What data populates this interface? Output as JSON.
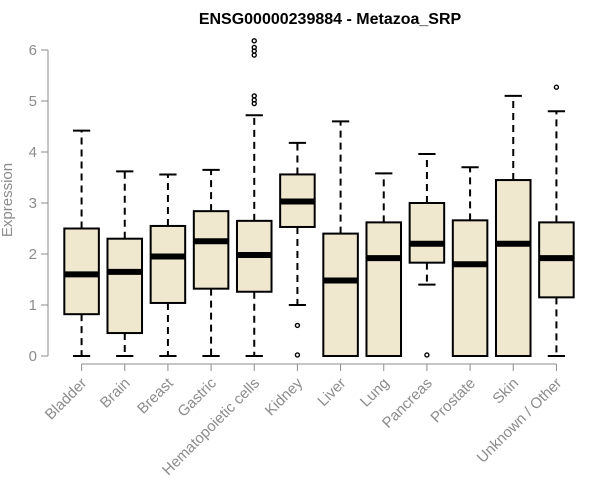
{
  "chart_data": {
    "type": "box",
    "title": "ENSG00000239884 - Metazoa_SRP",
    "xlabel": "",
    "ylabel": "Expression",
    "ylim": [
      0,
      6.2
    ],
    "yticks": [
      0,
      1,
      2,
      3,
      4,
      5,
      6
    ],
    "box_color": "#efe8cf",
    "categories": [
      "Bladder",
      "Brain",
      "Breast",
      "Gastric",
      "Hematopoietic cells",
      "Kidney",
      "Liver",
      "Lung",
      "Pancreas",
      "Prostate",
      "Skin",
      "Unknown / Other"
    ],
    "boxes": [
      {
        "whisker_low": 0,
        "q1": 0.82,
        "median": 1.6,
        "q3": 2.5,
        "whisker_high": 4.42,
        "outliers": []
      },
      {
        "whisker_low": 0,
        "q1": 0.45,
        "median": 1.65,
        "q3": 2.3,
        "whisker_high": 3.62,
        "outliers": []
      },
      {
        "whisker_low": 0,
        "q1": 1.04,
        "median": 1.95,
        "q3": 2.55,
        "whisker_high": 3.56,
        "outliers": []
      },
      {
        "whisker_low": 0,
        "q1": 1.32,
        "median": 2.25,
        "q3": 2.84,
        "whisker_high": 3.65,
        "outliers": []
      },
      {
        "whisker_low": 0,
        "q1": 1.26,
        "median": 1.98,
        "q3": 2.65,
        "whisker_high": 4.72,
        "outliers": [
          4.95,
          5.02,
          5.1,
          5.9,
          5.98,
          6.05,
          6.18
        ]
      },
      {
        "whisker_low": 1.0,
        "q1": 2.53,
        "median": 3.03,
        "q3": 3.56,
        "whisker_high": 4.18,
        "outliers": [
          0.6,
          0.02
        ]
      },
      {
        "whisker_low": 0,
        "q1": 0,
        "median": 1.48,
        "q3": 2.4,
        "whisker_high": 4.6,
        "outliers": []
      },
      {
        "whisker_low": 0,
        "q1": 0,
        "median": 1.92,
        "q3": 2.62,
        "whisker_high": 3.58,
        "outliers": []
      },
      {
        "whisker_low": 1.4,
        "q1": 1.83,
        "median": 2.2,
        "q3": 3.0,
        "whisker_high": 3.96,
        "outliers": [
          0.02
        ]
      },
      {
        "whisker_low": 0,
        "q1": 0,
        "median": 1.8,
        "q3": 2.66,
        "whisker_high": 3.7,
        "outliers": []
      },
      {
        "whisker_low": 0,
        "q1": 0,
        "median": 2.2,
        "q3": 3.45,
        "whisker_high": 5.1,
        "outliers": []
      },
      {
        "whisker_low": 0,
        "q1": 1.15,
        "median": 1.92,
        "q3": 2.62,
        "whisker_high": 4.8,
        "outliers": [
          5.27
        ]
      }
    ]
  }
}
